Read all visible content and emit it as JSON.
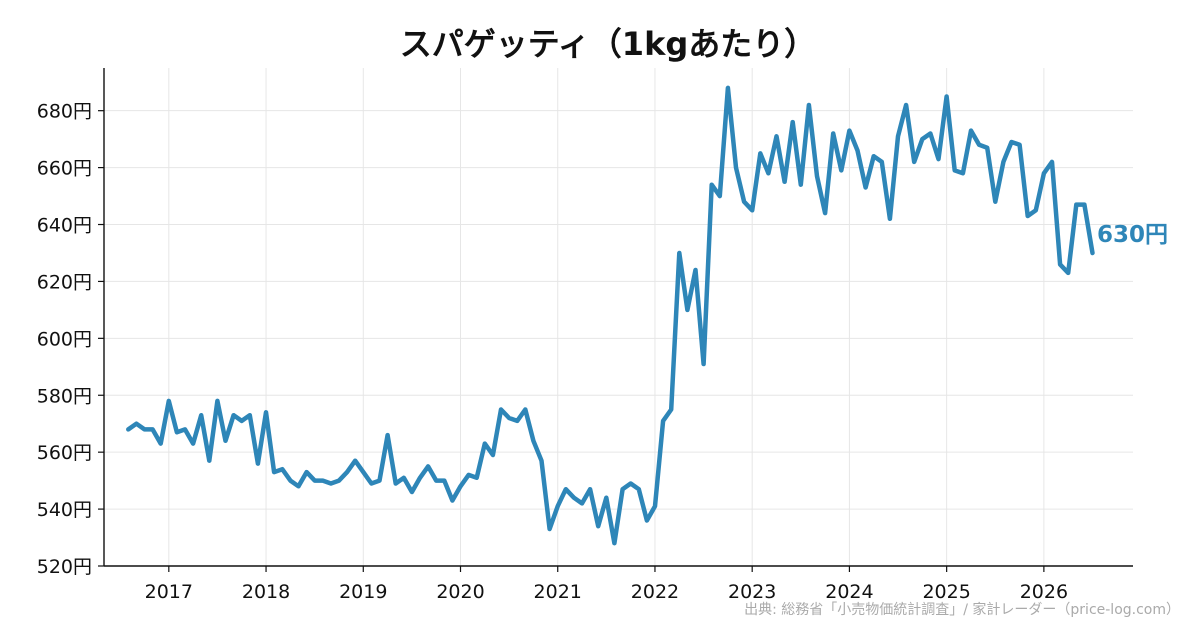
{
  "chart_data": {
    "type": "line",
    "title": "スパゲッティ（1kgあたり）",
    "xlabel": "",
    "ylabel": "",
    "y_unit": "円",
    "ylim": [
      520,
      695
    ],
    "xlim": [
      "2016-05",
      "2026-12"
    ],
    "y_ticks": [
      520,
      540,
      560,
      580,
      600,
      620,
      640,
      660,
      680
    ],
    "y_tick_labels": [
      "520円",
      "540円",
      "560円",
      "580円",
      "600円",
      "620円",
      "640円",
      "660円",
      "680円"
    ],
    "x_ticks": [
      "2017-01",
      "2018-01",
      "2019-01",
      "2020-01",
      "2021-01",
      "2022-01",
      "2023-01",
      "2024-01",
      "2025-01",
      "2026-01"
    ],
    "x_tick_labels": [
      "2017",
      "2018",
      "2019",
      "2020",
      "2021",
      "2022",
      "2023",
      "2024",
      "2025",
      "2026"
    ],
    "grid": true,
    "line_color": "#2e86b8",
    "end_label": "630円",
    "source": "出典: 総務省「小売物価統計調査」/ 家計レーダー（price-log.com）",
    "series": [
      {
        "x": [
          "2016-08",
          "2016-09",
          "2016-10",
          "2016-11",
          "2016-12",
          "2017-01",
          "2017-02",
          "2017-03",
          "2017-04",
          "2017-05",
          "2017-06",
          "2017-07",
          "2017-08",
          "2017-09",
          "2017-10",
          "2017-11",
          "2017-12",
          "2018-01",
          "2018-02",
          "2018-03",
          "2018-04",
          "2018-05",
          "2018-06",
          "2018-07",
          "2018-08",
          "2018-09",
          "2018-10",
          "2018-11",
          "2018-12",
          "2019-01",
          "2019-02",
          "2019-03",
          "2019-04",
          "2019-05",
          "2019-06",
          "2019-07",
          "2019-08",
          "2019-09",
          "2019-10",
          "2019-11",
          "2019-12",
          "2020-01",
          "2020-02",
          "2020-03",
          "2020-04",
          "2020-05",
          "2020-06",
          "2020-07",
          "2020-08",
          "2020-09",
          "2020-10",
          "2020-11",
          "2020-12",
          "2021-01",
          "2021-02",
          "2021-03",
          "2021-04",
          "2021-05",
          "2021-06",
          "2021-07",
          "2021-08",
          "2021-09",
          "2021-10",
          "2021-11",
          "2021-12",
          "2022-01",
          "2022-02",
          "2022-03",
          "2022-04",
          "2022-05",
          "2022-06",
          "2022-07",
          "2022-08",
          "2022-09",
          "2022-10",
          "2022-11",
          "2022-12",
          "2023-01",
          "2023-02",
          "2023-03",
          "2023-04",
          "2023-05",
          "2023-06",
          "2023-07",
          "2023-08",
          "2023-09",
          "2023-10",
          "2023-11",
          "2023-12",
          "2024-01",
          "2024-02",
          "2024-03",
          "2024-04",
          "2024-05",
          "2024-06",
          "2024-07",
          "2024-08",
          "2024-09",
          "2024-10",
          "2024-11",
          "2024-12",
          "2025-01",
          "2025-02",
          "2025-03",
          "2025-04",
          "2025-05",
          "2025-06",
          "2025-07",
          "2025-08",
          "2025-09",
          "2025-10",
          "2025-11",
          "2025-12",
          "2026-01",
          "2026-02",
          "2026-03",
          "2026-04",
          "2026-05",
          "2026-06",
          "2026-07"
        ],
        "y": [
          568,
          570,
          568,
          568,
          563,
          578,
          567,
          568,
          563,
          573,
          557,
          578,
          564,
          573,
          571,
          573,
          556,
          574,
          553,
          554,
          550,
          548,
          553,
          550,
          550,
          549,
          550,
          553,
          557,
          553,
          549,
          550,
          566,
          549,
          551,
          546,
          551,
          555,
          550,
          550,
          543,
          548,
          552,
          551,
          563,
          559,
          575,
          572,
          571,
          575,
          564,
          557,
          533,
          541,
          547,
          544,
          542,
          547,
          534,
          544,
          528,
          547,
          549,
          547,
          536,
          541,
          571,
          575,
          630,
          610,
          624,
          591,
          654,
          650,
          688,
          660,
          648,
          645,
          665,
          658,
          671,
          655,
          676,
          654,
          682,
          657,
          644,
          672,
          659,
          673,
          666,
          653,
          664,
          662,
          642,
          671,
          682,
          662,
          670,
          672,
          663,
          685,
          659,
          658,
          673,
          668,
          667,
          648,
          662,
          669,
          668,
          643,
          645,
          658,
          662,
          626,
          623,
          647,
          647,
          630
        ]
      }
    ]
  }
}
